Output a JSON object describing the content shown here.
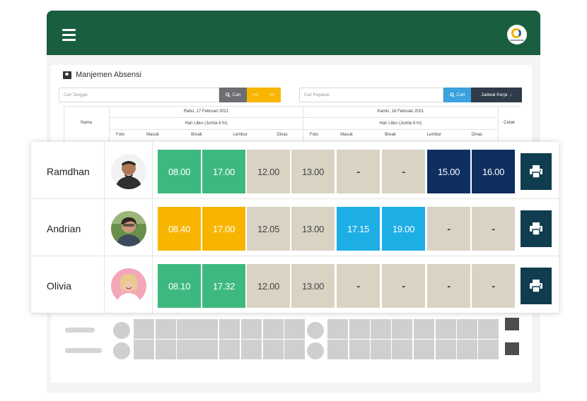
{
  "topbar": {
    "menu_icon": "hamburger-menu-icon",
    "logo_icon": "company-logo",
    "color": "#195e3f"
  },
  "page": {
    "title": "Manjemen Absensi",
    "title_icon": "id-card-icon"
  },
  "filters": {
    "date_placeholder": "Cari Tanggal",
    "search_label": "Cari",
    "prev_label": "<<",
    "next_label": ">>",
    "employee_placeholder": "Cari Pegawai",
    "search2_label": "Cari",
    "schedule_label": "Jadwal Kerja"
  },
  "table_header": {
    "name": "Nama",
    "print": "Cetak",
    "days": [
      {
        "date": "Rabu, 17 Februari 2021",
        "note": "Hari Libur (Jumta 6 hr)"
      },
      {
        "date": "Kamis, 18 Februari 2021",
        "note": "Hari Libur (Jumta 6 hr)"
      }
    ],
    "columns": [
      "Foto",
      "Masuk",
      "Break",
      "Lembur",
      "Dinas"
    ]
  },
  "colors": {
    "green": "#3db980",
    "yellow": "#f7b500",
    "beige": "#d8d3c3",
    "blue": "#1eaee6",
    "navy": "#0f2f61",
    "print": "#0f3d4f"
  },
  "rows": [
    {
      "name": "Ramdhan",
      "cells": [
        {
          "text": "08.00",
          "color": "green"
        },
        {
          "text": "17.00",
          "color": "green"
        },
        {
          "text": "12.00",
          "color": "beige"
        },
        {
          "text": "13.00",
          "color": "beige"
        },
        {
          "text": "-",
          "color": "beige"
        },
        {
          "text": "-",
          "color": "beige"
        },
        {
          "text": "15.00",
          "color": "navy"
        },
        {
          "text": "16.00",
          "color": "navy"
        }
      ]
    },
    {
      "name": "Andrian",
      "cells": [
        {
          "text": "08.40",
          "color": "yellow"
        },
        {
          "text": "17.00",
          "color": "yellow"
        },
        {
          "text": "12.05",
          "color": "beige"
        },
        {
          "text": "13.00",
          "color": "beige"
        },
        {
          "text": "17.15",
          "color": "blue"
        },
        {
          "text": "19.00",
          "color": "blue"
        },
        {
          "text": "-",
          "color": "beige"
        },
        {
          "text": "-",
          "color": "beige"
        }
      ]
    },
    {
      "name": "Olivia",
      "cells": [
        {
          "text": "08.10",
          "color": "green"
        },
        {
          "text": "17.32",
          "color": "green"
        },
        {
          "text": "12.00",
          "color": "beige"
        },
        {
          "text": "13.00",
          "color": "beige"
        },
        {
          "text": "-",
          "color": "beige"
        },
        {
          "text": "-",
          "color": "beige"
        },
        {
          "text": "-",
          "color": "beige"
        },
        {
          "text": "-",
          "color": "beige"
        }
      ]
    }
  ]
}
